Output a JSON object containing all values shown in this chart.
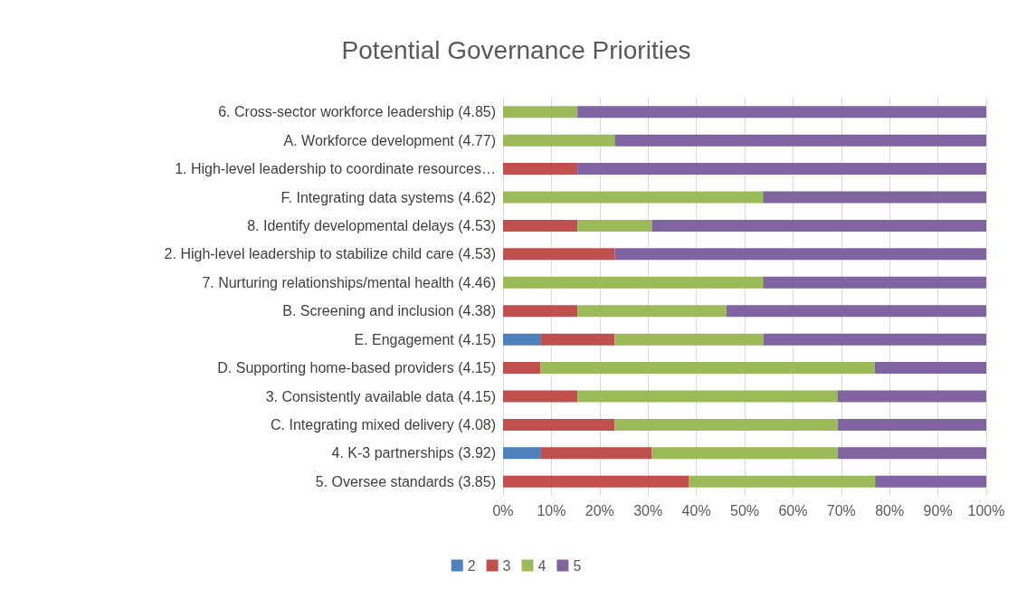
{
  "chart_data": {
    "type": "bar",
    "orientation": "horizontal",
    "stacked": true,
    "title": "Potential Governance Priorities",
    "categories": [
      "6. Cross-sector workforce leadership (4.85)",
      "A. Workforce development (4.77)",
      "1. High-level leadership to coordinate resources…",
      "F. Integrating data systems (4.62)",
      "8. Identify developmental delays (4.53)",
      "2. High-level leadership to stabilize child care (4.53)",
      "7. Nurturing relationships/mental health (4.46)",
      "B. Screening and inclusion (4.38)",
      "E. Engagement (4.15)",
      "D. Supporting home-based providers (4.15)",
      "3. Consistently available data (4.15)",
      "C. Integrating mixed delivery (4.08)",
      "4. K-3 partnerships (3.92)",
      "5. Oversee standards (3.85)"
    ],
    "series": [
      {
        "name": "2",
        "color": "#4f81bd",
        "values": [
          0,
          0,
          0,
          0,
          0,
          0,
          0,
          0,
          7.7,
          0,
          0,
          0,
          7.7,
          0
        ]
      },
      {
        "name": "3",
        "color": "#c0504d",
        "values": [
          0,
          0,
          15.4,
          0,
          15.4,
          23.1,
          0,
          15.4,
          15.4,
          7.7,
          15.4,
          23.1,
          23.1,
          38.5
        ]
      },
      {
        "name": "4",
        "color": "#9bbb59",
        "values": [
          15.4,
          23.1,
          0,
          53.8,
          15.4,
          0,
          53.8,
          30.8,
          30.8,
          69.2,
          53.8,
          46.2,
          38.5,
          38.5
        ]
      },
      {
        "name": "5",
        "color": "#8064a2",
        "values": [
          84.6,
          76.9,
          84.6,
          46.2,
          69.2,
          76.9,
          46.2,
          53.8,
          46.2,
          23.1,
          30.8,
          30.8,
          30.8,
          23.1
        ]
      }
    ],
    "xlim": [
      0,
      100
    ],
    "xticks": [
      {
        "value": 0,
        "label": "0%"
      },
      {
        "value": 10,
        "label": "10%"
      },
      {
        "value": 20,
        "label": "20%"
      },
      {
        "value": 30,
        "label": "30%"
      },
      {
        "value": 40,
        "label": "40%"
      },
      {
        "value": 50,
        "label": "50%"
      },
      {
        "value": 60,
        "label": "60%"
      },
      {
        "value": 70,
        "label": "70%"
      },
      {
        "value": 80,
        "label": "80%"
      },
      {
        "value": 90,
        "label": "90%"
      },
      {
        "value": 100,
        "label": "100%"
      }
    ],
    "grid": "x",
    "legend": "bottom"
  }
}
